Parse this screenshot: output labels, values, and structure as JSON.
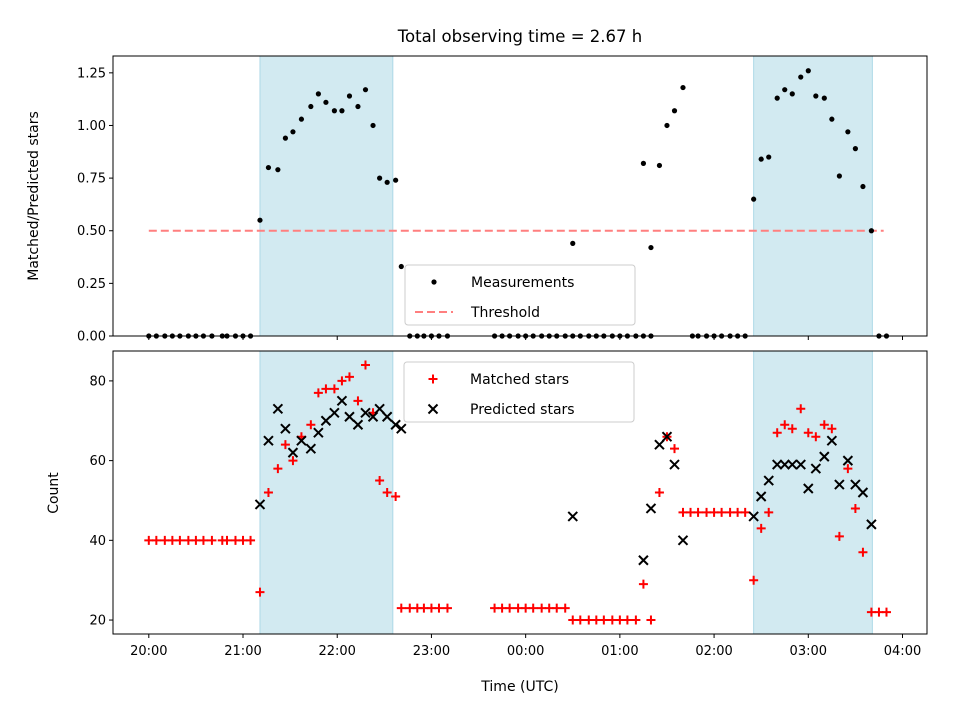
{
  "chart_data": {
    "title": "Total observing time = 2.67 h",
    "shaded_intervals_hours": [
      [
        21.18,
        22.59
      ],
      [
        26.42,
        27.68
      ]
    ],
    "x_ticks": {
      "values": [
        20,
        21,
        22,
        23,
        24,
        25,
        26,
        27,
        28
      ],
      "labels": [
        "20:00",
        "21:00",
        "22:00",
        "23:00",
        "00:00",
        "01:00",
        "02:00",
        "03:00",
        "04:00"
      ]
    },
    "xlabel": "Time (UTC)",
    "xlim": [
      19.62,
      28.26
    ],
    "colors": {
      "shade": "#add8e6",
      "threshold": "#ff7f7f",
      "matched": "#ff0000",
      "predicted": "#000000",
      "measurements": "#000000"
    },
    "panels": [
      {
        "type": "scatter",
        "ylabel": "Matched/Predicted stars",
        "ylim": [
          0,
          1.33
        ],
        "y_ticks": [
          "0.00",
          "0.25",
          "0.50",
          "0.75",
          "1.00",
          "1.25"
        ],
        "legend": {
          "placement": "lower-center",
          "entries": [
            "Measurements",
            "Threshold"
          ]
        },
        "threshold": {
          "name": "Threshold",
          "value": 0.5,
          "x_range": [
            20.0,
            27.8
          ]
        },
        "series": [
          {
            "name": "Measurements",
            "marker": "dot",
            "points": [
              [
                20.0,
                0
              ],
              [
                20.08,
                0
              ],
              [
                20.17,
                0
              ],
              [
                20.25,
                0
              ],
              [
                20.33,
                0
              ],
              [
                20.42,
                0
              ],
              [
                20.5,
                0
              ],
              [
                20.58,
                0
              ],
              [
                20.67,
                0
              ],
              [
                20.78,
                0
              ],
              [
                20.83,
                0
              ],
              [
                20.92,
                0
              ],
              [
                21.0,
                0
              ],
              [
                21.08,
                0
              ],
              [
                21.18,
                0.55
              ],
              [
                21.27,
                0.8
              ],
              [
                21.37,
                0.79
              ],
              [
                21.45,
                0.94
              ],
              [
                21.53,
                0.97
              ],
              [
                21.62,
                1.03
              ],
              [
                21.72,
                1.09
              ],
              [
                21.8,
                1.15
              ],
              [
                21.88,
                1.11
              ],
              [
                21.97,
                1.07
              ],
              [
                22.05,
                1.07
              ],
              [
                22.13,
                1.14
              ],
              [
                22.22,
                1.09
              ],
              [
                22.3,
                1.17
              ],
              [
                22.38,
                1.0
              ],
              [
                22.45,
                0.75
              ],
              [
                22.53,
                0.73
              ],
              [
                22.62,
                0.74
              ],
              [
                22.68,
                0.33
              ],
              [
                22.77,
                0
              ],
              [
                22.85,
                0
              ],
              [
                22.92,
                0
              ],
              [
                23.0,
                0
              ],
              [
                23.08,
                0
              ],
              [
                23.17,
                0
              ],
              [
                23.67,
                0
              ],
              [
                23.75,
                0
              ],
              [
                23.83,
                0
              ],
              [
                23.92,
                0
              ],
              [
                24.0,
                0
              ],
              [
                24.08,
                0
              ],
              [
                24.17,
                0
              ],
              [
                24.25,
                0
              ],
              [
                24.33,
                0
              ],
              [
                24.42,
                0
              ],
              [
                24.5,
                0
              ],
              [
                24.5,
                0.44
              ],
              [
                24.58,
                0
              ],
              [
                24.67,
                0
              ],
              [
                24.75,
                0
              ],
              [
                24.83,
                0
              ],
              [
                24.92,
                0
              ],
              [
                25.0,
                0
              ],
              [
                25.08,
                0
              ],
              [
                25.17,
                0
              ],
              [
                25.25,
                0
              ],
              [
                25.33,
                0
              ],
              [
                25.25,
                0.82
              ],
              [
                25.33,
                0.42
              ],
              [
                25.42,
                0.81
              ],
              [
                25.5,
                1.0
              ],
              [
                25.58,
                1.07
              ],
              [
                25.67,
                1.18
              ],
              [
                25.77,
                0
              ],
              [
                25.83,
                0
              ],
              [
                25.92,
                0
              ],
              [
                26.0,
                0
              ],
              [
                26.08,
                0
              ],
              [
                26.17,
                0
              ],
              [
                26.25,
                0
              ],
              [
                26.33,
                0
              ],
              [
                26.42,
                0.65
              ],
              [
                26.5,
                0.84
              ],
              [
                26.58,
                0.85
              ],
              [
                26.67,
                1.13
              ],
              [
                26.75,
                1.17
              ],
              [
                26.83,
                1.15
              ],
              [
                26.92,
                1.23
              ],
              [
                27.0,
                1.26
              ],
              [
                27.08,
                1.14
              ],
              [
                27.17,
                1.13
              ],
              [
                27.25,
                1.03
              ],
              [
                27.33,
                0.76
              ],
              [
                27.42,
                0.97
              ],
              [
                27.5,
                0.89
              ],
              [
                27.58,
                0.71
              ],
              [
                27.67,
                0.5
              ],
              [
                27.75,
                0
              ],
              [
                27.83,
                0
              ]
            ]
          }
        ]
      },
      {
        "type": "scatter",
        "ylabel": "Count",
        "ylim": [
          16.5,
          87.5
        ],
        "y_ticks": [
          "20",
          "40",
          "60",
          "80"
        ],
        "legend": {
          "placement": "upper-center",
          "entries": [
            "Matched stars",
            "Predicted stars"
          ]
        },
        "series": [
          {
            "name": "Matched stars",
            "marker": "plus",
            "points": [
              [
                20.0,
                40
              ],
              [
                20.08,
                40
              ],
              [
                20.17,
                40
              ],
              [
                20.25,
                40
              ],
              [
                20.33,
                40
              ],
              [
                20.42,
                40
              ],
              [
                20.5,
                40
              ],
              [
                20.58,
                40
              ],
              [
                20.67,
                40
              ],
              [
                20.78,
                40
              ],
              [
                20.83,
                40
              ],
              [
                20.92,
                40
              ],
              [
                21.0,
                40
              ],
              [
                21.08,
                40
              ],
              [
                21.18,
                27
              ],
              [
                21.27,
                52
              ],
              [
                21.37,
                58
              ],
              [
                21.45,
                64
              ],
              [
                21.53,
                60
              ],
              [
                21.62,
                66
              ],
              [
                21.72,
                69
              ],
              [
                21.8,
                77
              ],
              [
                21.88,
                78
              ],
              [
                21.97,
                78
              ],
              [
                22.05,
                80
              ],
              [
                22.13,
                81
              ],
              [
                22.22,
                75
              ],
              [
                22.3,
                84
              ],
              [
                22.38,
                72
              ],
              [
                22.45,
                55
              ],
              [
                22.53,
                52
              ],
              [
                22.62,
                51
              ],
              [
                22.68,
                23
              ],
              [
                22.77,
                23
              ],
              [
                22.85,
                23
              ],
              [
                22.92,
                23
              ],
              [
                23.0,
                23
              ],
              [
                23.08,
                23
              ],
              [
                23.17,
                23
              ],
              [
                23.67,
                23
              ],
              [
                23.75,
                23
              ],
              [
                23.83,
                23
              ],
              [
                23.92,
                23
              ],
              [
                24.0,
                23
              ],
              [
                24.08,
                23
              ],
              [
                24.17,
                23
              ],
              [
                24.25,
                23
              ],
              [
                24.33,
                23
              ],
              [
                24.42,
                23
              ],
              [
                24.5,
                20
              ],
              [
                24.58,
                20
              ],
              [
                24.67,
                20
              ],
              [
                24.75,
                20
              ],
              [
                24.83,
                20
              ],
              [
                24.92,
                20
              ],
              [
                25.0,
                20
              ],
              [
                25.08,
                20
              ],
              [
                25.17,
                20
              ],
              [
                25.25,
                29
              ],
              [
                25.33,
                20
              ],
              [
                25.42,
                52
              ],
              [
                25.5,
                66
              ],
              [
                25.58,
                63
              ],
              [
                25.67,
                47
              ],
              [
                25.75,
                47
              ],
              [
                25.83,
                47
              ],
              [
                25.92,
                47
              ],
              [
                26.0,
                47
              ],
              [
                26.08,
                47
              ],
              [
                26.17,
                47
              ],
              [
                26.25,
                47
              ],
              [
                26.33,
                47
              ],
              [
                26.42,
                30
              ],
              [
                26.5,
                43
              ],
              [
                26.58,
                47
              ],
              [
                26.67,
                67
              ],
              [
                26.75,
                69
              ],
              [
                26.83,
                68
              ],
              [
                26.92,
                73
              ],
              [
                27.0,
                67
              ],
              [
                27.08,
                66
              ],
              [
                27.17,
                69
              ],
              [
                27.25,
                68
              ],
              [
                27.33,
                41
              ],
              [
                27.42,
                58
              ],
              [
                27.5,
                48
              ],
              [
                27.58,
                37
              ],
              [
                27.67,
                22
              ],
              [
                27.75,
                22
              ],
              [
                27.83,
                22
              ]
            ]
          },
          {
            "name": "Predicted stars",
            "marker": "x",
            "points": [
              [
                21.18,
                49
              ],
              [
                21.27,
                65
              ],
              [
                21.37,
                73
              ],
              [
                21.45,
                68
              ],
              [
                21.53,
                62
              ],
              [
                21.62,
                65
              ],
              [
                21.72,
                63
              ],
              [
                21.8,
                67
              ],
              [
                21.88,
                70
              ],
              [
                21.97,
                72
              ],
              [
                22.05,
                75
              ],
              [
                22.13,
                71
              ],
              [
                22.22,
                69
              ],
              [
                22.3,
                72
              ],
              [
                22.38,
                71
              ],
              [
                22.45,
                73
              ],
              [
                22.53,
                71
              ],
              [
                22.62,
                69
              ],
              [
                22.68,
                68
              ],
              [
                24.5,
                46
              ],
              [
                25.25,
                35
              ],
              [
                25.33,
                48
              ],
              [
                25.42,
                64
              ],
              [
                25.5,
                66
              ],
              [
                25.58,
                59
              ],
              [
                25.67,
                40
              ],
              [
                26.42,
                46
              ],
              [
                26.5,
                51
              ],
              [
                26.58,
                55
              ],
              [
                26.67,
                59
              ],
              [
                26.75,
                59
              ],
              [
                26.83,
                59
              ],
              [
                26.92,
                59
              ],
              [
                27.0,
                53
              ],
              [
                27.08,
                58
              ],
              [
                27.17,
                61
              ],
              [
                27.25,
                65
              ],
              [
                27.33,
                54
              ],
              [
                27.42,
                60
              ],
              [
                27.5,
                54
              ],
              [
                27.58,
                52
              ],
              [
                27.67,
                44
              ]
            ]
          }
        ]
      }
    ]
  }
}
